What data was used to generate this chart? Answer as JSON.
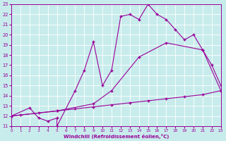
{
  "xlabel": "Windchill (Refroidissement éolien,°C)",
  "bg_color": "#c8ecec",
  "line_color": "#990099",
  "grid_color": "#ffffff",
  "xmin": 0,
  "xmax": 23,
  "ymin": 11,
  "ymax": 23,
  "line1_x": [
    0,
    2,
    3,
    4,
    5,
    5,
    7,
    8,
    9,
    10,
    11,
    12,
    13,
    14,
    15,
    16,
    17,
    18,
    19,
    20,
    21,
    22,
    23
  ],
  "line1_y": [
    12,
    12.8,
    11.8,
    11.5,
    11.8,
    11.0,
    14.5,
    16.5,
    19.3,
    15.0,
    16.5,
    21.8,
    22.0,
    21.5,
    23.0,
    22.0,
    21.5,
    20.5,
    19.5,
    20.0,
    18.5,
    17.0,
    15.0
  ],
  "line2_x": [
    0,
    1,
    3,
    5,
    7,
    9,
    11,
    13,
    15,
    17,
    19,
    21,
    23
  ],
  "line2_y": [
    12,
    12.1,
    12.3,
    12.5,
    12.7,
    12.9,
    13.1,
    13.3,
    13.5,
    13.7,
    13.9,
    14.1,
    14.5
  ],
  "line3_x": [
    0,
    5,
    9,
    11,
    14,
    17,
    21,
    23
  ],
  "line3_y": [
    12,
    12.5,
    13.2,
    14.5,
    17.8,
    19.2,
    18.5,
    14.5
  ],
  "yticks": [
    11,
    12,
    13,
    14,
    15,
    16,
    17,
    18,
    19,
    20,
    21,
    22,
    23
  ],
  "xticks": [
    0,
    1,
    2,
    3,
    4,
    5,
    6,
    7,
    8,
    9,
    10,
    11,
    12,
    13,
    14,
    15,
    16,
    17,
    18,
    19,
    20,
    21,
    22,
    23
  ]
}
